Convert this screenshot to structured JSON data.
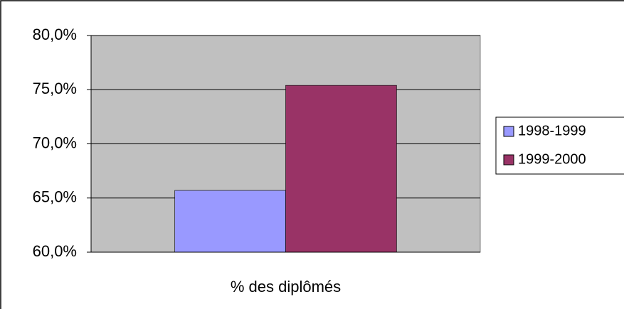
{
  "chart_data": {
    "type": "bar",
    "categories": [
      "% des diplômés"
    ],
    "series": [
      {
        "name": "1998-1999",
        "color": "#9999ff",
        "values": [
          65.7
        ]
      },
      {
        "name": "1999-2000",
        "color": "#993366",
        "values": [
          75.4
        ]
      }
    ],
    "ylim": [
      60,
      80
    ],
    "yticks": [
      {
        "value": 60,
        "label": "60,0%"
      },
      {
        "value": 65,
        "label": "65,0%"
      },
      {
        "value": 70,
        "label": "70,0%"
      },
      {
        "value": 75,
        "label": "75,0%"
      },
      {
        "value": 80,
        "label": "80,0%"
      }
    ],
    "grid": true,
    "legend": "right"
  }
}
